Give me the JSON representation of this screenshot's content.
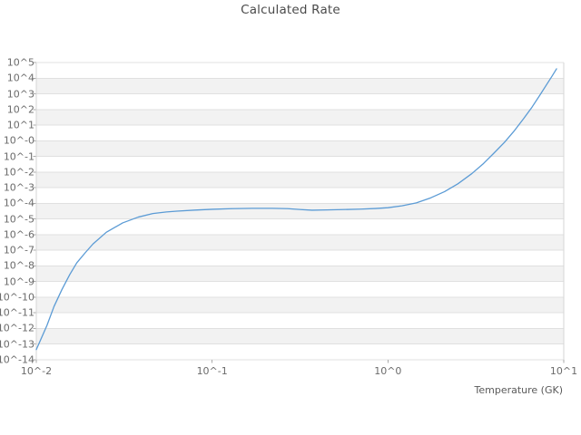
{
  "title": "Calculated Rate",
  "colors": {
    "background": "#ffffff",
    "line": "#5b9bd5",
    "grid": "#e0e0e0",
    "band": "#f2f2f2",
    "axis_edge": "#d6d6d6",
    "tick_mark": "#aaaaaa",
    "tick_text": "#6b6b6b",
    "title_text": "#4a4a4a",
    "axis_title_text": "#5a5a5a"
  },
  "chart_data": {
    "type": "line",
    "title": "Calculated Rate",
    "xlabel": "Temperature (GK)",
    "ylabel": "",
    "x_scale": "log",
    "y_scale": "log",
    "xlim_log10": [
      -2,
      1
    ],
    "ylim_log10": [
      -14,
      5
    ],
    "x_tick_labels": [
      "10^-2",
      "10^-1",
      "10^0",
      "10^1"
    ],
    "y_tick_labels": [
      "10^5",
      "10^4",
      "10^3",
      "10^2",
      "10^1",
      "10^-0",
      "10^-1",
      "10^-2",
      "10^-3",
      "10^-4",
      "10^-5",
      "10^-6",
      "10^-7",
      "10^-8",
      "10^-9",
      "10^-10",
      "10^-11",
      "10^-12",
      "10^-13",
      "10^-14"
    ],
    "grid": "horizontal decade gridlines, alternating white/gray decade bands, no interior vertical gridlines",
    "legend": "none",
    "series": [
      {
        "name": "calculated-rate",
        "points_T_GK_vs_log10_rate": [
          [
            0.01,
            -13.35
          ],
          [
            0.0115,
            -11.8
          ],
          [
            0.0126,
            -10.6
          ],
          [
            0.014,
            -9.5
          ],
          [
            0.0155,
            -8.55
          ],
          [
            0.017,
            -7.8
          ],
          [
            0.019,
            -7.15
          ],
          [
            0.021,
            -6.6
          ],
          [
            0.025,
            -5.85
          ],
          [
            0.031,
            -5.25
          ],
          [
            0.038,
            -4.88
          ],
          [
            0.046,
            -4.65
          ],
          [
            0.055,
            -4.55
          ],
          [
            0.063,
            -4.5
          ],
          [
            0.08,
            -4.43
          ],
          [
            0.1,
            -4.38
          ],
          [
            0.13,
            -4.34
          ],
          [
            0.17,
            -4.32
          ],
          [
            0.22,
            -4.32
          ],
          [
            0.27,
            -4.34
          ],
          [
            0.32,
            -4.4
          ],
          [
            0.37,
            -4.44
          ],
          [
            0.45,
            -4.42
          ],
          [
            0.55,
            -4.4
          ],
          [
            0.7,
            -4.37
          ],
          [
            0.85,
            -4.33
          ],
          [
            1.0,
            -4.28
          ],
          [
            1.2,
            -4.16
          ],
          [
            1.45,
            -3.97
          ],
          [
            1.75,
            -3.65
          ],
          [
            2.1,
            -3.25
          ],
          [
            2.5,
            -2.75
          ],
          [
            3.0,
            -2.1
          ],
          [
            3.5,
            -1.45
          ],
          [
            4.0,
            -0.8
          ],
          [
            4.6,
            -0.1
          ],
          [
            5.2,
            0.6
          ],
          [
            5.9,
            1.4
          ],
          [
            6.6,
            2.15
          ],
          [
            7.3,
            2.9
          ],
          [
            8.0,
            3.6
          ],
          [
            8.6,
            4.15
          ],
          [
            9.1,
            4.6
          ]
        ]
      }
    ]
  }
}
